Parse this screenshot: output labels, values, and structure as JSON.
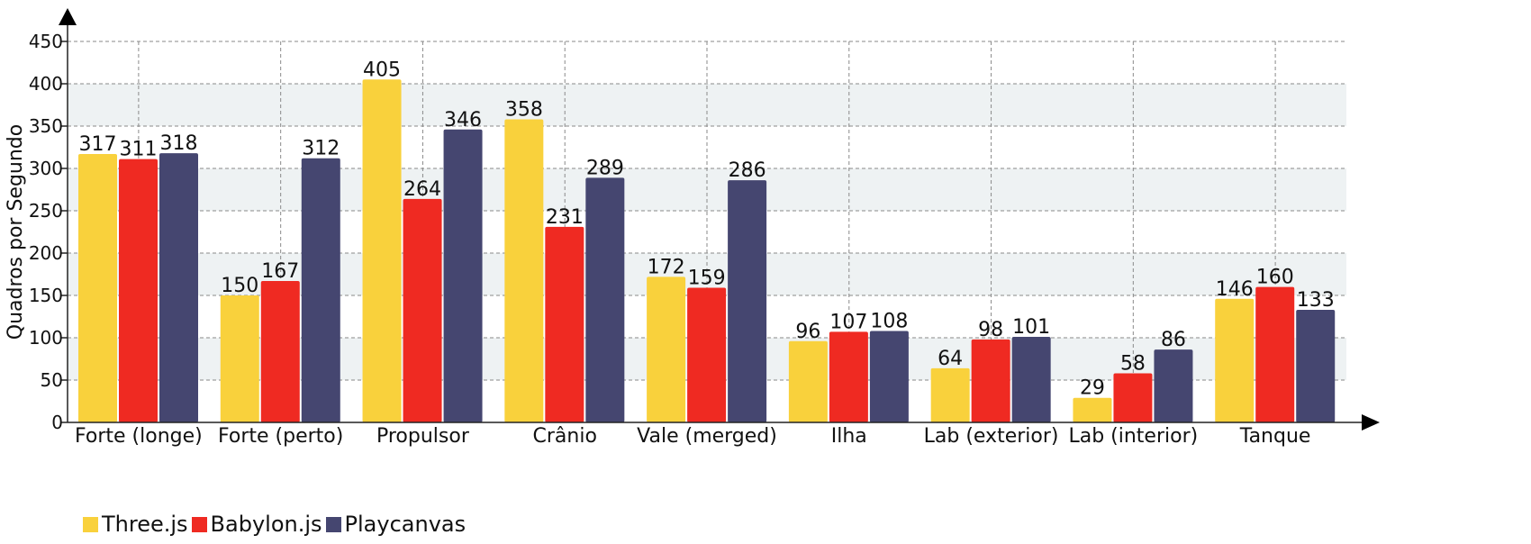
{
  "chart_data": {
    "type": "bar",
    "title": "",
    "xlabel": "",
    "ylabel": "Quadros por Segundo",
    "ylim": [
      0,
      450
    ],
    "yticks": [
      0,
      50,
      100,
      150,
      200,
      250,
      300,
      350,
      400,
      450
    ],
    "grid": true,
    "legend_position": "bottom-left",
    "categories": [
      "Forte (longe)",
      "Forte (perto)",
      "Propulsor",
      "Crânio",
      "Vale (merged)",
      "Ilha",
      "Lab (exterior)",
      "Lab (interior)",
      "Tanque"
    ],
    "series": [
      {
        "name": "Three.js",
        "color": "#f9d13c",
        "values": [
          317,
          150,
          405,
          358,
          172,
          96,
          64,
          29,
          146
        ]
      },
      {
        "name": "Babylon.js",
        "color": "#ef2a22",
        "values": [
          311,
          167,
          264,
          231,
          159,
          107,
          98,
          58,
          160
        ]
      },
      {
        "name": "Playcanvas",
        "color": "#454670",
        "values": [
          318,
          312,
          346,
          289,
          286,
          108,
          101,
          86,
          133
        ]
      }
    ]
  }
}
